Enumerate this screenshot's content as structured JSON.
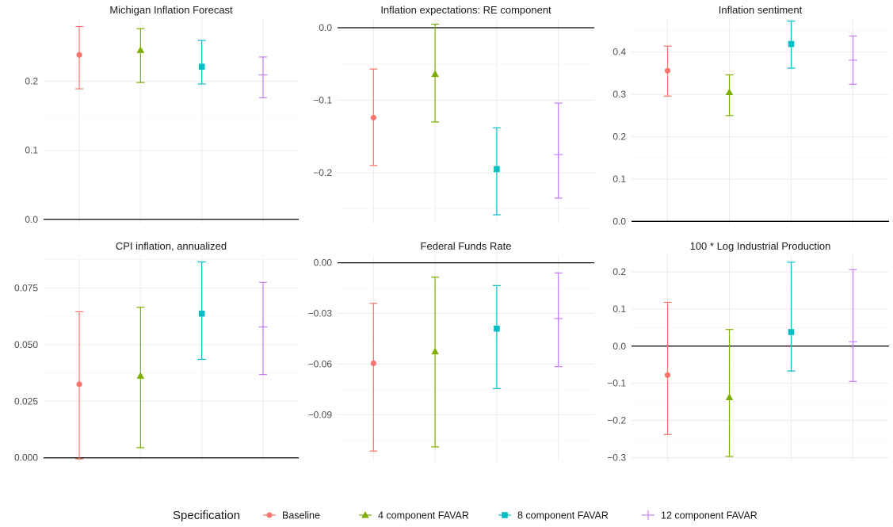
{
  "colors": {
    "Baseline": "#F8766D",
    "4 component FAVAR": "#7CAE00",
    "8 component FAVAR": "#00BFC4",
    "12 component FAVAR": "#C77CFF",
    "grid_major": "#ebebeb",
    "grid_minor": "#f4f4f4",
    "zero_line": "#000000"
  },
  "legend": {
    "title": "Specification",
    "position": "bottom",
    "items": [
      {
        "label": "Baseline",
        "marker": "circle"
      },
      {
        "label": "4 component FAVAR",
        "marker": "triangle"
      },
      {
        "label": "8 component FAVAR",
        "marker": "square"
      },
      {
        "label": "12 component FAVAR",
        "marker": "cross"
      }
    ]
  },
  "chart_data": [
    {
      "type": "errorbar",
      "title": "Michigan Inflation Forecast",
      "ylim": [
        -0.006,
        0.29
      ],
      "yticks": [
        0.0,
        0.1,
        0.2
      ],
      "ytick_labels": [
        "0.0",
        "0.1",
        "0.2"
      ],
      "grid": true,
      "zero_line": true,
      "series": [
        {
          "name": "Baseline",
          "estimate": 0.238,
          "lower": 0.189,
          "upper": 0.279
        },
        {
          "name": "4 component FAVAR",
          "estimate": 0.245,
          "lower": 0.198,
          "upper": 0.276
        },
        {
          "name": "8 component FAVAR",
          "estimate": 0.221,
          "lower": 0.196,
          "upper": 0.259
        },
        {
          "name": "12 component FAVAR",
          "estimate": 0.209,
          "lower": 0.176,
          "upper": 0.235
        }
      ]
    },
    {
      "type": "errorbar",
      "title": "Inflation expectations: RE component",
      "ylim": [
        -0.27,
        0.012
      ],
      "yticks": [
        -0.2,
        -0.1,
        0.0
      ],
      "ytick_labels": [
        "−0.2",
        "−0.1",
        "0.0"
      ],
      "grid": true,
      "zero_line": true,
      "series": [
        {
          "name": "Baseline",
          "estimate": -0.124,
          "lower": -0.19,
          "upper": -0.057
        },
        {
          "name": "4 component FAVAR",
          "estimate": -0.064,
          "lower": -0.13,
          "upper": 0.005
        },
        {
          "name": "8 component FAVAR",
          "estimate": -0.195,
          "lower": -0.258,
          "upper": -0.138
        },
        {
          "name": "12 component FAVAR",
          "estimate": -0.175,
          "lower": -0.235,
          "upper": -0.104
        }
      ]
    },
    {
      "type": "errorbar",
      "title": "Inflation sentiment",
      "ylim": [
        -0.005,
        0.478
      ],
      "yticks": [
        0.0,
        0.1,
        0.2,
        0.3,
        0.4
      ],
      "ytick_labels": [
        "0.0",
        "0.1",
        "0.2",
        "0.3",
        "0.4"
      ],
      "grid": true,
      "zero_line": true,
      "series": [
        {
          "name": "Baseline",
          "estimate": 0.356,
          "lower": 0.296,
          "upper": 0.414
        },
        {
          "name": "4 component FAVAR",
          "estimate": 0.305,
          "lower": 0.25,
          "upper": 0.346
        },
        {
          "name": "8 component FAVAR",
          "estimate": 0.419,
          "lower": 0.362,
          "upper": 0.473
        },
        {
          "name": "12 component FAVAR",
          "estimate": 0.381,
          "lower": 0.324,
          "upper": 0.438
        }
      ]
    },
    {
      "type": "errorbar",
      "title": "CPI inflation, annualized",
      "ylim": [
        -0.0015,
        0.0895
      ],
      "yticks": [
        0.0,
        0.025,
        0.05,
        0.075
      ],
      "ytick_labels": [
        "0.000",
        "0.025",
        "0.050",
        "0.075"
      ],
      "grid": true,
      "zero_line": true,
      "series": [
        {
          "name": "Baseline",
          "estimate": 0.0325,
          "lower": -0.0005,
          "upper": 0.0645
        },
        {
          "name": "4 component FAVAR",
          "estimate": 0.0362,
          "lower": 0.0045,
          "upper": 0.0665
        },
        {
          "name": "8 component FAVAR",
          "estimate": 0.0637,
          "lower": 0.0435,
          "upper": 0.0865
        },
        {
          "name": "12 component FAVAR",
          "estimate": 0.0578,
          "lower": 0.0368,
          "upper": 0.0775
        }
      ]
    },
    {
      "type": "errorbar",
      "title": "Federal Funds Rate",
      "ylim": [
        -0.1175,
        0.0045
      ],
      "yticks": [
        -0.09,
        -0.06,
        -0.03,
        0.0
      ],
      "ytick_labels": [
        "−0.09",
        "−0.06",
        "−0.03",
        "0.00"
      ],
      "grid": true,
      "zero_line": true,
      "series": [
        {
          "name": "Baseline",
          "estimate": -0.0595,
          "lower": -0.1115,
          "upper": -0.024
        },
        {
          "name": "4 component FAVAR",
          "estimate": -0.0525,
          "lower": -0.109,
          "upper": -0.0085
        },
        {
          "name": "8 component FAVAR",
          "estimate": -0.039,
          "lower": -0.0745,
          "upper": -0.0135
        },
        {
          "name": "12 component FAVAR",
          "estimate": -0.033,
          "lower": -0.0615,
          "upper": -0.006
        }
      ]
    },
    {
      "type": "errorbar",
      "title": "100 * Log Industrial Production",
      "ylim": [
        -0.31,
        0.245
      ],
      "yticks": [
        -0.3,
        -0.2,
        -0.1,
        0.0,
        0.1,
        0.2
      ],
      "ytick_labels": [
        "−0.3",
        "−0.2",
        "−0.1",
        "0.0",
        "0.1",
        "0.2"
      ],
      "grid": true,
      "zero_line": true,
      "series": [
        {
          "name": "Baseline",
          "estimate": -0.078,
          "lower": -0.238,
          "upper": 0.118
        },
        {
          "name": "4 component FAVAR",
          "estimate": -0.138,
          "lower": -0.297,
          "upper": 0.045
        },
        {
          "name": "8 component FAVAR",
          "estimate": 0.038,
          "lower": -0.067,
          "upper": 0.226
        },
        {
          "name": "12 component FAVAR",
          "estimate": 0.012,
          "lower": -0.095,
          "upper": 0.206
        }
      ]
    }
  ]
}
